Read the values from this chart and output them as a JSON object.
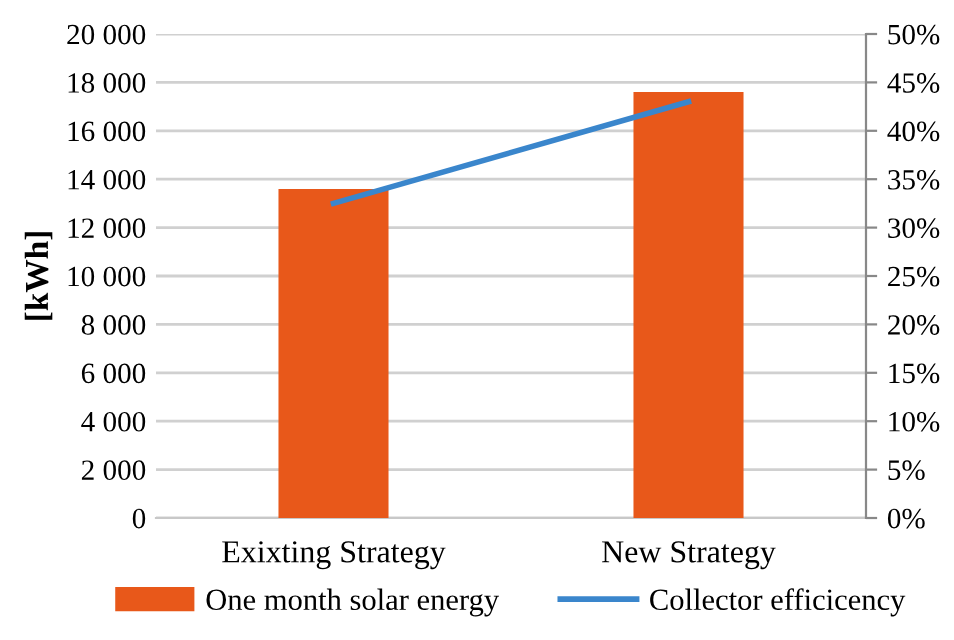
{
  "chart_data": {
    "type": "bar",
    "categories": [
      "Exixting Strategy",
      "New Strategy"
    ],
    "ylabel": "[kWh]",
    "series": [
      {
        "name": "One month solar energy",
        "color": "#e8581a",
        "values": [
          13600,
          17600
        ]
      },
      {
        "name": "Collector efficicency",
        "color": "#3a86cc",
        "type": "line",
        "axis": "y2",
        "values": [
          32.5,
          43
        ]
      }
    ],
    "ylim": [
      0,
      20000
    ],
    "yticks": [
      0,
      {
        "value": 2000,
        "label": "2 000"
      },
      {
        "value": 4000,
        "label": "4 000"
      },
      {
        "value": 6000,
        "label": "6 000"
      },
      {
        "value": 8000,
        "label": "8 000"
      },
      {
        "value": 10000,
        "label": "10 000"
      },
      {
        "value": 12000,
        "label": "12 000"
      },
      {
        "value": 14000,
        "label": "14 000"
      },
      {
        "value": 16000,
        "label": "16 000"
      },
      {
        "value": 18000,
        "label": "18 000"
      },
      {
        "value": 20000,
        "label": "20 000"
      }
    ],
    "y2lim": [
      0,
      50
    ],
    "y2ticks": [
      {
        "value": 0,
        "label": "0%"
      },
      {
        "value": 5,
        "label": "5%"
      },
      {
        "value": 10,
        "label": "10%"
      },
      {
        "value": 15,
        "label": "15%"
      },
      {
        "value": 20,
        "label": "20%"
      },
      {
        "value": 25,
        "label": "25%"
      },
      {
        "value": 30,
        "label": "30%"
      },
      {
        "value": 35,
        "label": "35%"
      },
      {
        "value": 40,
        "label": "40%"
      },
      {
        "value": 45,
        "label": "45%"
      },
      {
        "value": 50,
        "label": "50%"
      }
    ],
    "grid": "y",
    "legend": "bottom"
  }
}
